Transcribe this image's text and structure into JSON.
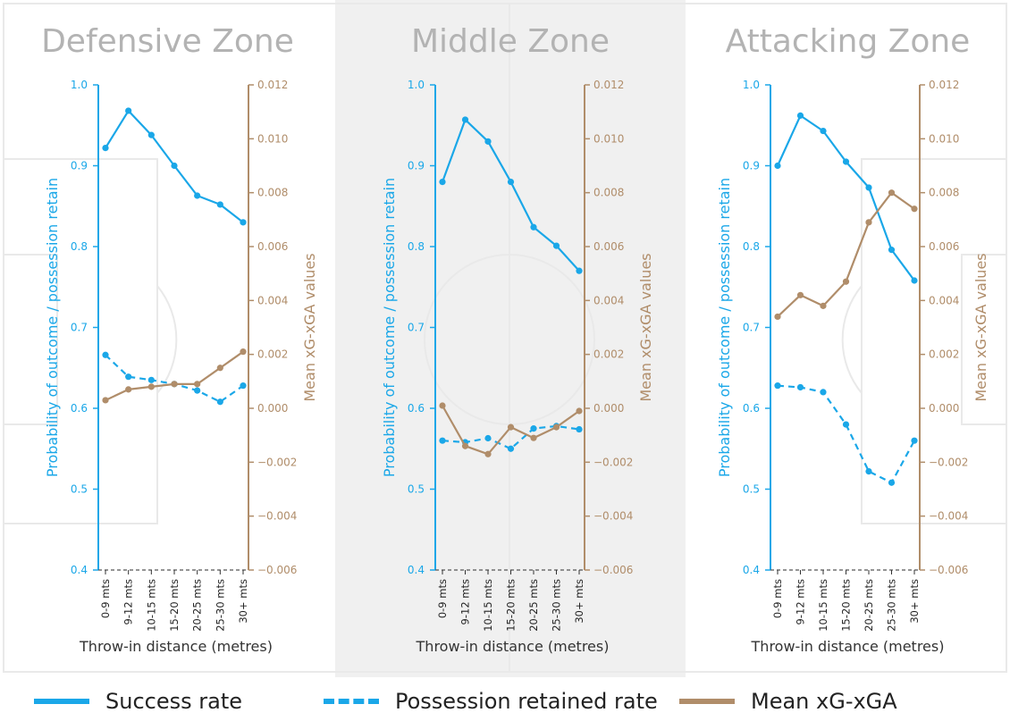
{
  "colors": {
    "success": "#1aa7e8",
    "retained": "#1aa7e8",
    "xg": "#b08d6a",
    "title": "#b3b3b3",
    "middle_bg": "#f0f0f0"
  },
  "legend": {
    "success_label": "Success rate",
    "retained_label": "Possession retained rate",
    "xg_label": "Mean xG-xGA"
  },
  "chart_data": [
    {
      "type": "line",
      "title": "Defensive Zone",
      "categories": [
        "0-9 mts",
        "9-12 mts",
        "10-15 mts",
        "15-20 mts",
        "20-25 mts",
        "25-30 mts",
        "30+ mts"
      ],
      "xlabel": "Throw-in distance (metres)",
      "ylabel": "Probability of outcome / possession retain",
      "y2label": "Mean xG-xGA values",
      "ylim": [
        0.4,
        1.0
      ],
      "y2lim": [
        -0.006,
        0.012
      ],
      "yticks": [
        "0.4",
        "0.5",
        "0.6",
        "0.7",
        "0.8",
        "0.9",
        "1.0"
      ],
      "y2ticks": [
        "−0.006",
        "−0.004",
        "−0.002",
        "0.000",
        "0.002",
        "0.004",
        "0.006",
        "0.008",
        "0.010",
        "0.012"
      ],
      "series": [
        {
          "name": "Success rate",
          "axis": "left",
          "values": [
            0.922,
            0.968,
            0.938,
            0.9,
            0.863,
            0.852,
            0.83
          ]
        },
        {
          "name": "Possession retained rate",
          "axis": "left",
          "values": [
            0.666,
            0.639,
            0.635,
            0.63,
            0.622,
            0.608,
            0.628
          ]
        },
        {
          "name": "Mean xG-xGA",
          "axis": "right",
          "values": [
            0.0003,
            0.0007,
            0.0008,
            0.0009,
            0.0009,
            0.0015,
            0.0021
          ]
        }
      ]
    },
    {
      "type": "line",
      "title": "Middle Zone",
      "categories": [
        "0-9 mts",
        "9-12 mts",
        "10-15 mts",
        "15-20 mts",
        "20-25 mts",
        "25-30 mts",
        "30+ mts"
      ],
      "xlabel": "Throw-in distance (metres)",
      "ylabel": "Probability of outcome / possession retain",
      "y2label": "Mean xG-xGA values",
      "ylim": [
        0.4,
        1.0
      ],
      "y2lim": [
        -0.006,
        0.012
      ],
      "yticks": [
        "0.4",
        "0.5",
        "0.6",
        "0.7",
        "0.8",
        "0.9",
        "1.0"
      ],
      "y2ticks": [
        "−0.006",
        "−0.004",
        "−0.002",
        "0.000",
        "0.002",
        "0.004",
        "0.006",
        "0.008",
        "0.010",
        "0.012"
      ],
      "series": [
        {
          "name": "Success rate",
          "axis": "left",
          "values": [
            0.88,
            0.957,
            0.93,
            0.88,
            0.824,
            0.801,
            0.77
          ]
        },
        {
          "name": "Possession retained rate",
          "axis": "left",
          "values": [
            0.56,
            0.558,
            0.563,
            0.55,
            0.575,
            0.578,
            0.574
          ]
        },
        {
          "name": "Mean xG-xGA",
          "axis": "right",
          "values": [
            0.0001,
            -0.0014,
            -0.0017,
            -0.0007,
            -0.0011,
            -0.0007,
            -0.0001
          ]
        }
      ]
    },
    {
      "type": "line",
      "title": "Attacking Zone",
      "categories": [
        "0-9 mts",
        "9-12 mts",
        "10-15 mts",
        "15-20 mts",
        "20-25 mts",
        "25-30 mts",
        "30+ mts"
      ],
      "xlabel": "Throw-in distance (metres)",
      "ylabel": "Probability of outcome / possession retain",
      "y2label": "Mean xG-xGA values",
      "ylim": [
        0.4,
        1.0
      ],
      "y2lim": [
        -0.006,
        0.012
      ],
      "yticks": [
        "0.4",
        "0.5",
        "0.6",
        "0.7",
        "0.8",
        "0.9",
        "1.0"
      ],
      "y2ticks": [
        "−0.006",
        "−0.004",
        "−0.002",
        "0.000",
        "0.002",
        "0.004",
        "0.006",
        "0.008",
        "0.010",
        "0.012"
      ],
      "series": [
        {
          "name": "Success rate",
          "axis": "left",
          "values": [
            0.9,
            0.962,
            0.943,
            0.905,
            0.873,
            0.796,
            0.758
          ]
        },
        {
          "name": "Possession retained rate",
          "axis": "left",
          "values": [
            0.628,
            0.626,
            0.62,
            0.58,
            0.522,
            0.508,
            0.56
          ]
        },
        {
          "name": "Mean xG-xGA",
          "axis": "right",
          "values": [
            0.0034,
            0.0042,
            0.0038,
            0.0047,
            0.0069,
            0.008,
            0.0074
          ]
        }
      ]
    }
  ]
}
